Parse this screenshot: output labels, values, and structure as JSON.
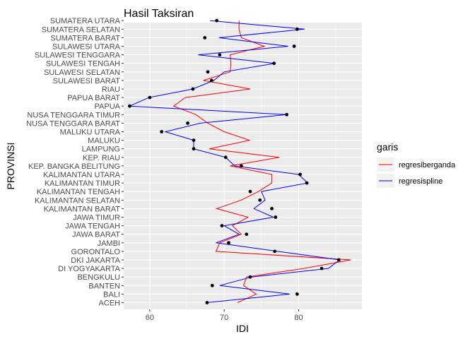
{
  "chart_data": {
    "type": "line",
    "title": "Hasil Taksiran",
    "xlabel": "IDI",
    "ylabel": "PROVINSI",
    "xlim": [
      56.5,
      88.5
    ],
    "xticks": [
      60,
      70,
      80
    ],
    "grid": true,
    "legend_title": "garis",
    "legend_position": "right",
    "categories": [
      "ACEH",
      "BALI",
      "BANTEN",
      "BENGKULU",
      "DI YOGYAKARTA",
      "DKI JAKARTA",
      "GORONTALO",
      "JAMBI",
      "JAWA BARAT",
      "JAWA TENGAH",
      "JAWA TIMUR",
      "KALIMANTAN BARAT",
      "KALIMANTAN SELATAN",
      "KALIMANTAN TENGAH",
      "KALIMANTAN TIMUR",
      "KALIMANTAN UTARA",
      "KEP. BANGKA BELITUNG",
      "KEP. RIAU",
      "LAMPUNG",
      "MALUKU",
      "MALUKU UTARA",
      "NUSA TENGGARA BARAT",
      "NUSA TENGGARA TIMUR",
      "PAPUA",
      "PAPUA BARAT",
      "RIAU",
      "SULAWESI BARAT",
      "SULAWESI SELATAN",
      "SULAWESI TENGAH",
      "SULAWESI TENGGARA",
      "SULAWESI UTARA",
      "SUMATERA BARAT",
      "SUMATERA SELATAN",
      "SUMATERA UTARA"
    ],
    "points": [
      67.7,
      79.8,
      68.4,
      73.5,
      83.1,
      85.4,
      76.8,
      70.6,
      73.0,
      69.7,
      76.9,
      76.4,
      74.8,
      73.5,
      81.1,
      80.2,
      72.3,
      70.2,
      65.9,
      65.9,
      61.6,
      65.1,
      78.4,
      57.3,
      60.0,
      65.8,
      68.3,
      67.8,
      76.7,
      69.4,
      79.4,
      67.4,
      79.8,
      69.0
    ],
    "series": [
      {
        "name": "regresiberganda",
        "color": "#ff0000",
        "values": [
          71.8,
          74.3,
          72.6,
          73.0,
          80.7,
          87.0,
          68.9,
          69.4,
          72.3,
          71.1,
          73.2,
          69.0,
          72.3,
          74.6,
          76.4,
          76.4,
          70.8,
          77.4,
          68.0,
          73.4,
          70.0,
          67.8,
          66.2,
          63.2,
          64.8,
          73.5,
          67.2,
          70.8,
          70.9,
          70.8,
          75.4,
          72.3,
          72.0,
          72.0
        ]
      },
      {
        "name": "regresispline",
        "color": "#0000ff",
        "values": [
          67.7,
          78.8,
          69.4,
          73.7,
          84.0,
          85.5,
          77.2,
          68.9,
          72.0,
          70.0,
          76.6,
          74.0,
          75.5,
          75.0,
          81.2,
          80.0,
          71.4,
          70.2,
          65.9,
          65.9,
          62.1,
          66.8,
          78.4,
          57.3,
          59.9,
          65.8,
          68.6,
          70.0,
          76.8,
          66.5,
          78.6,
          69.3,
          80.8,
          68.1
        ]
      }
    ],
    "point_color": "#000000"
  }
}
